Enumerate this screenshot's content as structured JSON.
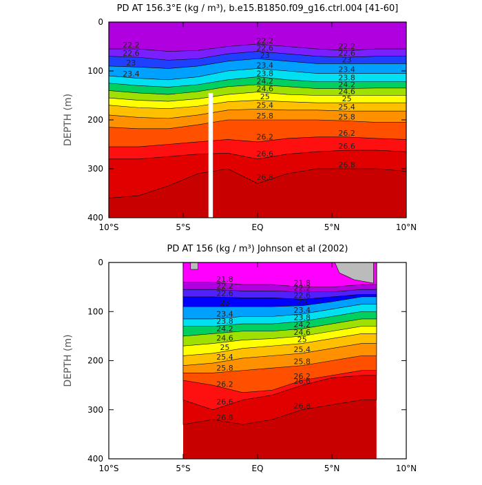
{
  "chart_data": [
    {
      "type": "contour",
      "title": "PD AT 156.3°E (kg / m³), b.e15.B1850.f09_g16.ctrl.004 [41-60]",
      "ylabel": "DEPTH (m)",
      "xlim": [
        -10,
        10
      ],
      "ylim": [
        400,
        0
      ],
      "xticks": [
        {
          "value": -10,
          "label": "10°S"
        },
        {
          "value": -5,
          "label": "5°S"
        },
        {
          "value": 0,
          "label": "EQ"
        },
        {
          "value": 5,
          "label": "5°N"
        },
        {
          "value": 10,
          "label": "10°N"
        }
      ],
      "yticks": [
        0,
        100,
        200,
        300,
        400
      ],
      "x": [
        -10,
        -8,
        -6,
        -4,
        -2,
        0,
        2,
        4,
        6,
        8,
        10
      ],
      "color": "#c80000",
      "contours": [
        {
          "level": 22.2,
          "color": "#b000e0",
          "depths": [
            55,
            55,
            60,
            58,
            50,
            45,
            50,
            55,
            58,
            55,
            55
          ]
        },
        {
          "level": 22.6,
          "color": "#7a20ff",
          "depths": [
            70,
            72,
            78,
            75,
            65,
            60,
            65,
            70,
            72,
            70,
            70
          ]
        },
        {
          "level": 23,
          "color": "#2040ff",
          "depths": [
            90,
            92,
            95,
            90,
            80,
            75,
            80,
            85,
            85,
            85,
            85
          ]
        },
        {
          "level": 23.4,
          "color": "#00a0ff",
          "depths": [
            110,
            115,
            118,
            112,
            100,
            95,
            100,
            105,
            105,
            105,
            105
          ]
        },
        {
          "level": 23.8,
          "color": "#00e0f0",
          "depths": [
            125,
            130,
            133,
            128,
            118,
            112,
            118,
            122,
            122,
            122,
            122
          ]
        },
        {
          "level": 24.2,
          "color": "#00d060",
          "depths": [
            140,
            145,
            148,
            142,
            132,
            128,
            132,
            136,
            136,
            135,
            135
          ]
        },
        {
          "level": 24.6,
          "color": "#a0e000",
          "depths": [
            155,
            160,
            162,
            157,
            148,
            143,
            148,
            150,
            150,
            150,
            150
          ]
        },
        {
          "level": 25,
          "color": "#ffff00",
          "depths": [
            170,
            175,
            177,
            172,
            163,
            160,
            163,
            165,
            165,
            165,
            165
          ]
        },
        {
          "level": 25.4,
          "color": "#ffc000",
          "depths": [
            190,
            195,
            197,
            190,
            180,
            178,
            180,
            180,
            182,
            182,
            182
          ]
        },
        {
          "level": 25.8,
          "color": "#ff9000",
          "depths": [
            215,
            218,
            218,
            210,
            200,
            200,
            200,
            200,
            202,
            205,
            205
          ]
        },
        {
          "level": 26.2,
          "color": "#ff5000",
          "depths": [
            255,
            255,
            250,
            245,
            240,
            245,
            238,
            235,
            235,
            238,
            240
          ]
        },
        {
          "level": 26.6,
          "color": "#ff1010",
          "depths": [
            280,
            280,
            275,
            270,
            268,
            280,
            270,
            265,
            262,
            262,
            265
          ]
        },
        {
          "level": 26.8,
          "color": "#e00000",
          "depths": [
            360,
            355,
            335,
            310,
            300,
            330,
            310,
            300,
            300,
            300,
            305
          ]
        }
      ]
    },
    {
      "type": "contour",
      "title": "PD AT 156 (kg / m³) Johnson et al (2002)",
      "ylabel": "DEPTH (m)",
      "xlim": [
        -10,
        10
      ],
      "ylim": [
        400,
        0
      ],
      "xticks": [
        {
          "value": -10,
          "label": "10°S"
        },
        {
          "value": -5,
          "label": "5°S"
        },
        {
          "value": 0,
          "label": "EQ"
        },
        {
          "value": 5,
          "label": "5°N"
        },
        {
          "value": 10,
          "label": "10°N"
        }
      ],
      "yticks": [
        0,
        100,
        200,
        300,
        400
      ],
      "x": [
        -5,
        -3,
        -1,
        1,
        3,
        5,
        7,
        8
      ],
      "color": "#c80000",
      "contours": [
        {
          "level": 21.8,
          "color": "#ff00ff",
          "depths": [
            40,
            40,
            45,
            45,
            50,
            50,
            45,
            45
          ]
        },
        {
          "level": 22.2,
          "color": "#b000e0",
          "depths": [
            55,
            55,
            58,
            58,
            60,
            60,
            55,
            55
          ]
        },
        {
          "level": 22.6,
          "color": "#5020ff",
          "depths": [
            70,
            70,
            72,
            72,
            75,
            70,
            65,
            65
          ]
        },
        {
          "level": 23,
          "color": "#0000ff",
          "depths": [
            90,
            90,
            90,
            90,
            88,
            80,
            70,
            70
          ]
        },
        {
          "level": 23.4,
          "color": "#00a0ff",
          "depths": [
            115,
            115,
            110,
            110,
            105,
            95,
            85,
            85
          ]
        },
        {
          "level": 23.8,
          "color": "#00e0f0",
          "depths": [
            130,
            130,
            125,
            125,
            120,
            110,
            100,
            100
          ]
        },
        {
          "level": 24.2,
          "color": "#00d060",
          "depths": [
            150,
            145,
            140,
            140,
            135,
            125,
            115,
            115
          ]
        },
        {
          "level": 24.6,
          "color": "#a0e000",
          "depths": [
            170,
            165,
            158,
            155,
            150,
            140,
            130,
            130
          ]
        },
        {
          "level": 25,
          "color": "#ffff00",
          "depths": [
            190,
            185,
            175,
            170,
            165,
            155,
            145,
            145
          ]
        },
        {
          "level": 25.4,
          "color": "#ffc000",
          "depths": [
            210,
            205,
            195,
            190,
            185,
            175,
            165,
            165
          ]
        },
        {
          "level": 25.8,
          "color": "#ff9000",
          "depths": [
            225,
            225,
            220,
            215,
            210,
            200,
            190,
            190
          ]
        },
        {
          "level": 26.2,
          "color": "#ff5000",
          "depths": [
            240,
            250,
            265,
            260,
            240,
            230,
            220,
            220
          ]
        },
        {
          "level": 26.6,
          "color": "#ff1010",
          "depths": [
            280,
            300,
            280,
            270,
            250,
            235,
            230,
            230
          ]
        },
        {
          "level": 26.8,
          "color": "#e00000",
          "depths": [
            330,
            320,
            330,
            320,
            300,
            290,
            280,
            280
          ]
        }
      ]
    }
  ]
}
